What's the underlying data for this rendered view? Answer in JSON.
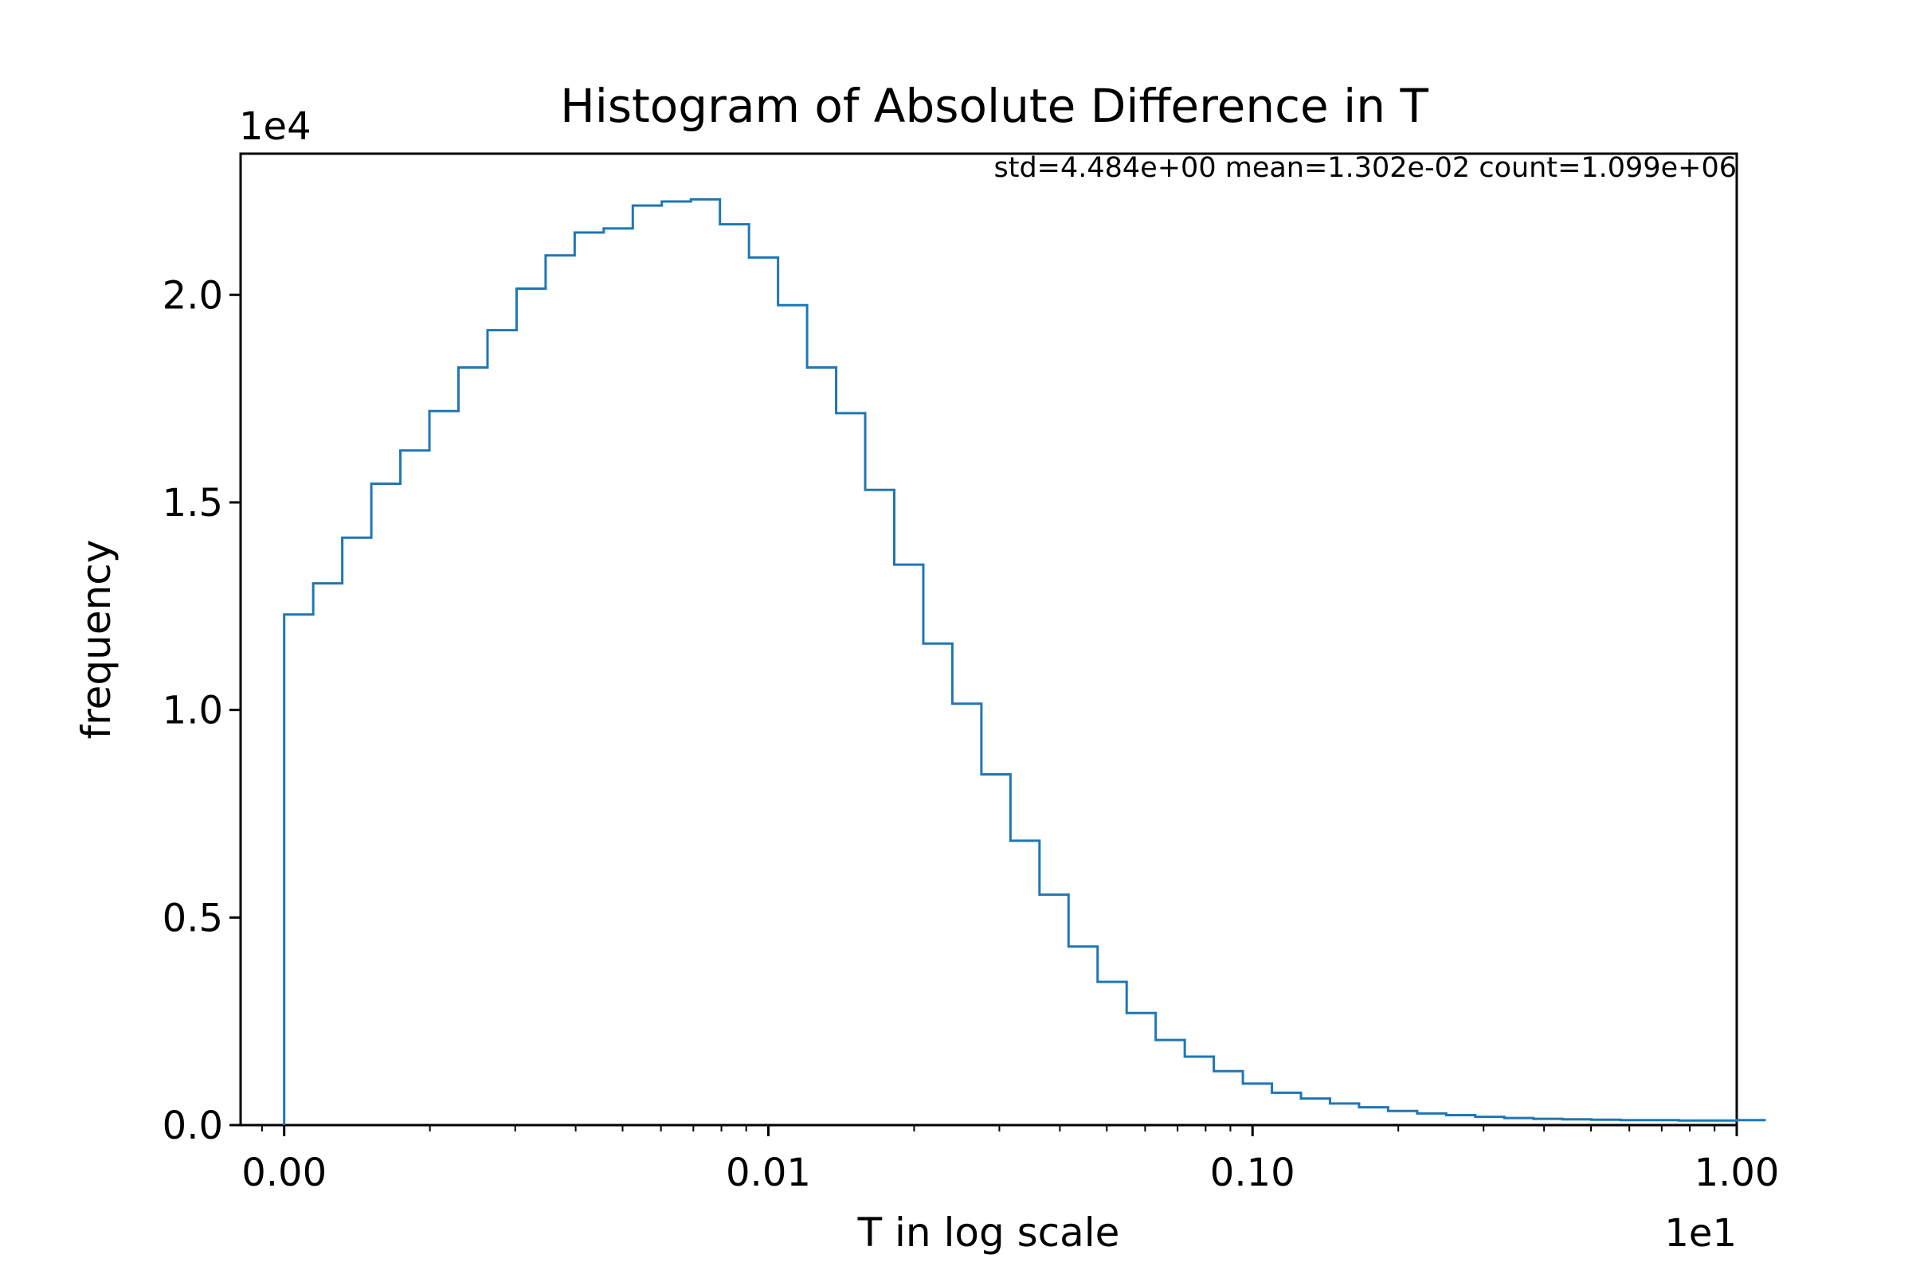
{
  "chart_data": {
    "type": "histogram",
    "title": "Histogram of Absolute Difference in T",
    "xlabel": "T in log scale",
    "ylabel": "frequency",
    "x_scale": "log",
    "x_offset_label": "1e1",
    "y_offset_label": "1e4",
    "stats_text": "std=4.484e+00 mean=1.302e-02 count=1.099e+06",
    "grid": false,
    "color": "#1f77b4",
    "ylim": [
      0,
      2.34
    ],
    "xlim_log10": [
      -3.09,
      0.0
    ],
    "x_ticks": [
      {
        "value": 0.001,
        "label": "0.00"
      },
      {
        "value": 0.01,
        "label": "0.01"
      },
      {
        "value": 0.1,
        "label": "0.10"
      },
      {
        "value": 1.0,
        "label": "1.00"
      }
    ],
    "y_ticks": [
      {
        "value": 0.0,
        "label": "0.0"
      },
      {
        "value": 0.5,
        "label": "0.5"
      },
      {
        "value": 1.0,
        "label": "1.0"
      },
      {
        "value": 1.5,
        "label": "1.5"
      },
      {
        "value": 2.0,
        "label": "2.0"
      }
    ],
    "bin_log10_start": -3.0,
    "bin_log10_width": 0.06,
    "values": [
      1.23,
      1.305,
      1.415,
      1.545,
      1.625,
      1.72,
      1.825,
      1.915,
      2.015,
      2.095,
      2.15,
      2.16,
      2.215,
      2.225,
      2.23,
      2.17,
      2.09,
      1.975,
      1.825,
      1.715,
      1.53,
      1.35,
      1.16,
      1.015,
      0.845,
      0.685,
      0.555,
      0.43,
      0.345,
      0.27,
      0.205,
      0.165,
      0.13,
      0.1,
      0.078,
      0.064,
      0.052,
      0.043,
      0.034,
      0.028,
      0.024,
      0.02,
      0.017,
      0.015,
      0.014,
      0.013,
      0.012,
      0.012,
      0.011,
      0.011,
      0.012
    ]
  }
}
